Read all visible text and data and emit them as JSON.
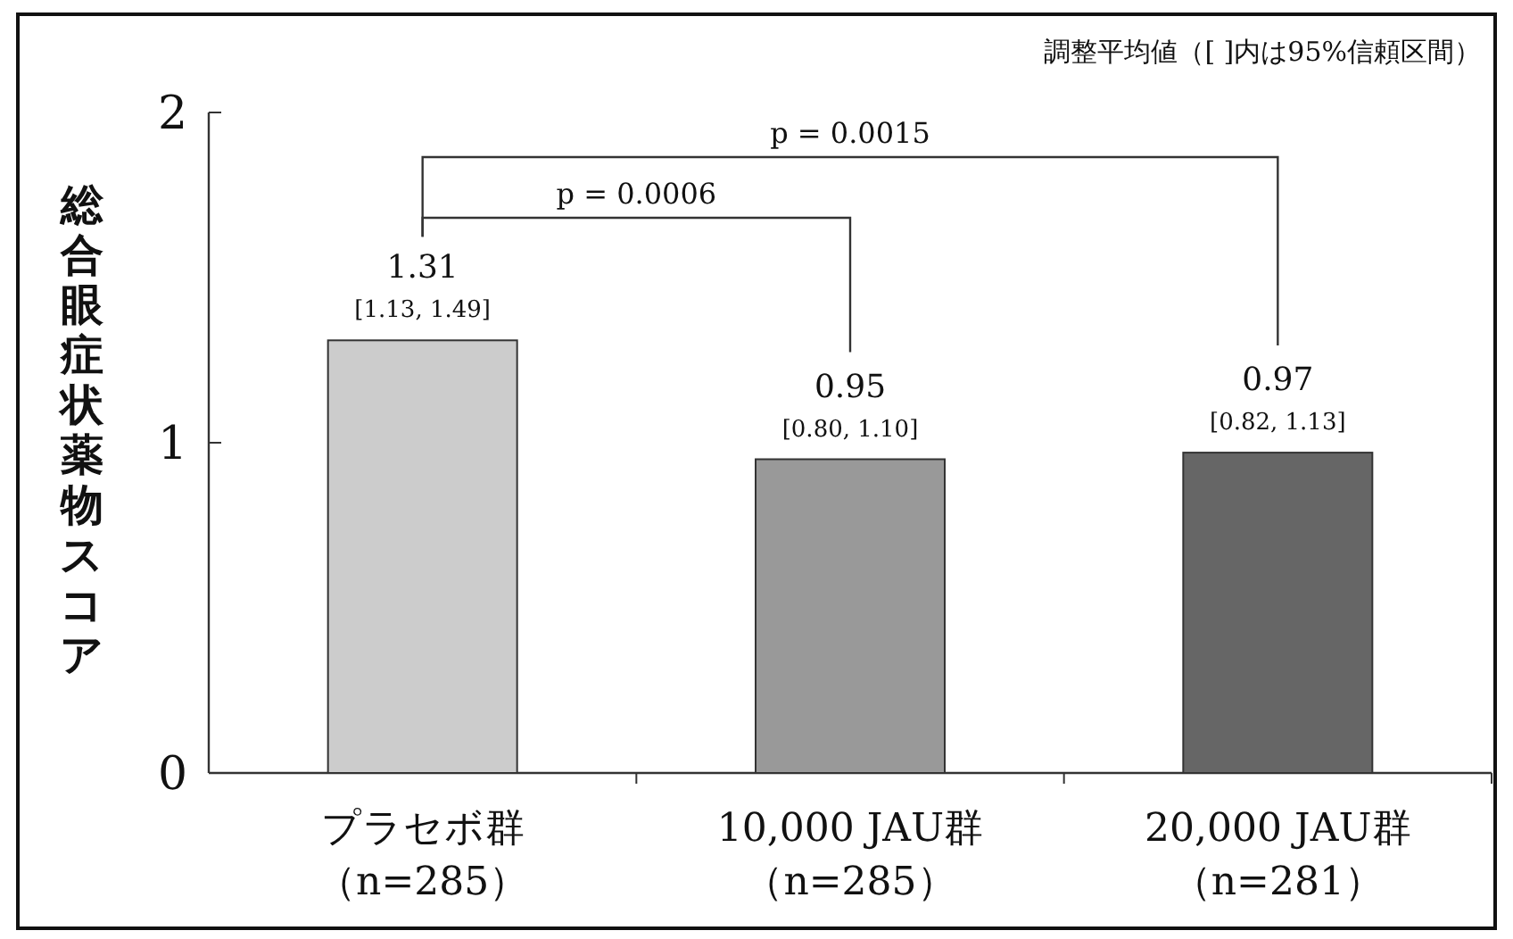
{
  "chart_data": {
    "type": "bar",
    "ylabel": "総合眼症状薬物スコア",
    "categories": [
      "プラセボ群（n=285）",
      "10,000 JAU群（n=285）",
      "20,000 JAU群（n=281）"
    ],
    "values": [
      1.31,
      0.95,
      0.97
    ],
    "colors": [
      "#cccccc",
      "#999999",
      "#666666"
    ],
    "ylim": [
      0,
      2
    ],
    "yticks": [
      0,
      1,
      2
    ],
    "data_labels": true,
    "grid": false,
    "annotations": [
      "調整平均値（[ ]内は95%信頼区間）",
      "p = 0.0015",
      "p = 0.0006",
      {
        "text": "[1.13, 1.49]",
        "x": "プラセボ群（n=285）",
        "y": 1.31
      },
      {
        "text": "[0.80, 1.10]",
        "x": "10,000 JAU群（n=285）",
        "y": 0.95
      },
      {
        "text": "[0.82, 1.13]",
        "x": "20,000 JAU群（n=281）",
        "y": 0.97
      }
    ]
  }
}
